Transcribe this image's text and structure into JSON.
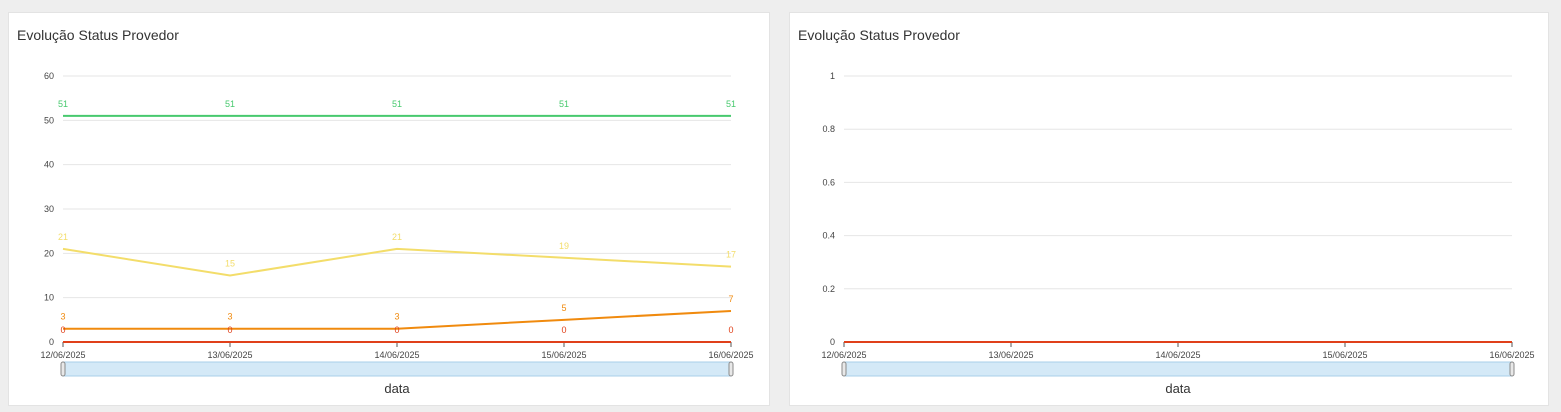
{
  "colors": {
    "green": "#47c96e",
    "yellow": "#f3dd6a",
    "orange": "#f08a0e",
    "red": "#e0401a",
    "grid": "#e6e6e6",
    "axis": "#555555",
    "slider_fill": "#d4e9f7",
    "slider_border": "#a9cfe8"
  },
  "panels": [
    {
      "title": "Evolução Status Provedor"
    },
    {
      "title": "Evolução Status Provedor"
    }
  ],
  "chart_data": [
    {
      "type": "line",
      "title": "Evolução Status Provedor",
      "xlabel": "data",
      "ylabel": "",
      "categories": [
        "12/06/2025",
        "13/06/2025",
        "14/06/2025",
        "15/06/2025",
        "16/06/2025"
      ],
      "ylim": [
        0,
        60
      ],
      "yticks": [
        "0",
        "10",
        "20",
        "30",
        "40",
        "50",
        "60"
      ],
      "grid": true,
      "series": [
        {
          "color": "#47c96e",
          "values": [
            51,
            51,
            51,
            51,
            51
          ],
          "labels": [
            "51",
            "51",
            "51",
            "51",
            "51"
          ]
        },
        {
          "color": "#f3dd6a",
          "values": [
            21,
            15,
            21,
            19,
            17
          ],
          "labels": [
            "21",
            "15",
            "21",
            "19",
            "17"
          ]
        },
        {
          "color": "#f08a0e",
          "values": [
            3,
            3,
            3,
            5,
            7
          ],
          "labels": [
            "3",
            "3",
            "3",
            "5",
            "7"
          ]
        },
        {
          "color": "#e0401a",
          "values": [
            0,
            0,
            0,
            0,
            0
          ],
          "labels": [
            "0",
            "0",
            "0",
            "0",
            "0"
          ]
        }
      ]
    },
    {
      "type": "line",
      "title": "Evolução Status Provedor",
      "xlabel": "data",
      "ylabel": "",
      "categories": [
        "12/06/2025",
        "13/06/2025",
        "14/06/2025",
        "15/06/2025",
        "16/06/2025"
      ],
      "ylim": [
        0,
        1
      ],
      "yticks": [
        "0",
        "0.2",
        "0.4",
        "0.6",
        "0.8",
        "1"
      ],
      "grid": true,
      "series": [
        {
          "color": "#f08a0e",
          "values": [
            0,
            0,
            0,
            0,
            0
          ]
        },
        {
          "color": "#e0401a",
          "values": [
            0,
            0,
            0,
            0,
            0
          ]
        }
      ]
    }
  ]
}
